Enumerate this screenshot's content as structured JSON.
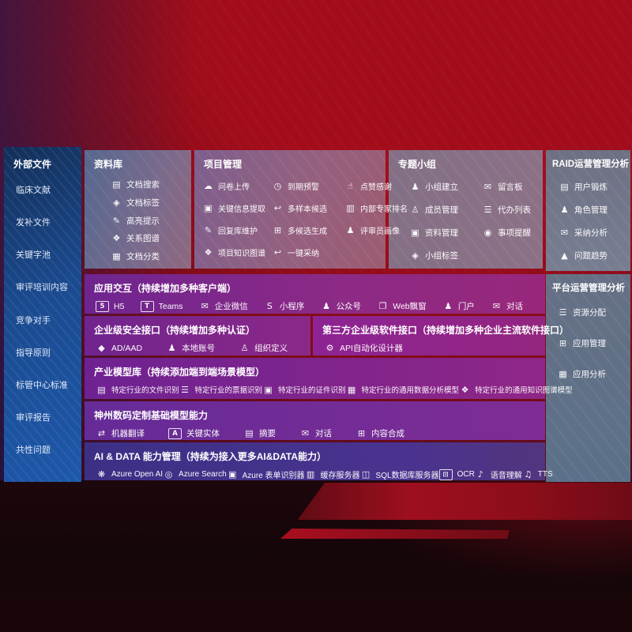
{
  "colors": {
    "bg-red": "#a30d1b",
    "sidebar-blue": "#1b4a8e",
    "panel-purple": "#8c2a86",
    "panel-indigo": "#3c3085",
    "panel-gray-blue": "#5b7189"
  },
  "icon_glyphs": {
    "document-search": "▤",
    "document-tag": "◈",
    "highlight-pen": "✎",
    "relation-graph": "❖",
    "document-category": "▦",
    "upload-cloud": "☁",
    "alarm-clock": "◷",
    "thumbs-up": "☝",
    "info-extract": "▣",
    "multi-sample-reply": "↩",
    "expert-ranking": "▥",
    "reply-maintain-pen": "✎",
    "multi-generate-grid": "⊞",
    "reviewer-person": "♟",
    "knowledge-graph": "❖",
    "one-click-adopt": "↩",
    "group-people": "♟",
    "bbs-board": "✉",
    "member-person": "♙",
    "todo-clipboard": "☰",
    "data-box": "▣",
    "reminder-bell": "◉",
    "group-tag": "◈",
    "user-card": "▤",
    "role-people": "♟",
    "adoption-chat": "✉",
    "trend-chart": "▲",
    "resource-list": "☰",
    "app-grid": "⊞",
    "app-chart": "▦",
    "html5": "5",
    "teams": "T",
    "wecom-chat": "✉",
    "miniprogram": "S",
    "official-account": "♟",
    "web-window": "❐",
    "portal-person": "♟",
    "dialog-people": "✉",
    "ad-diamond": "◆",
    "local-account-person": "♟",
    "org-person": "♙",
    "api-gear": "⚙",
    "file-recognize": "▤",
    "receipt-recognize": "☰",
    "idcard-recognize": "▣",
    "data-model-image": "▦",
    "knowledge-model-graph": "❖",
    "translate": "⇄",
    "key-entity-a": "A",
    "summary-doc": "▤",
    "chat-bubble": "✉",
    "content-grid": "⊞",
    "azure-openai": "❋",
    "azure-search": "◎",
    "form-recognizer": "▣",
    "cache-server": "▥",
    "sql-database": "◫",
    "ocr-frame": "⊡",
    "speech-understand": "♪",
    "tts-phone": "♫"
  },
  "sidebar": {
    "title": "外部文件",
    "items": [
      "临床文献",
      "发补文件",
      "关键字池",
      "审评培训内容",
      "竞争对手",
      "指导原则",
      "标管中心标准",
      "审评报告",
      "共性问题"
    ]
  },
  "panels": {
    "library": {
      "title": "资料库",
      "items": [
        {
          "label": "文档搜索",
          "icon": "document-search"
        },
        {
          "label": "文档标签",
          "icon": "document-tag"
        },
        {
          "label": "高亮提示",
          "icon": "highlight-pen"
        },
        {
          "label": "关系图谱",
          "icon": "relation-graph"
        },
        {
          "label": "文档分类",
          "icon": "document-category"
        }
      ]
    },
    "project": {
      "title": "项目管理",
      "items": [
        {
          "label": "问卷上传",
          "icon": "upload-cloud"
        },
        {
          "label": "到期预警",
          "icon": "alarm-clock"
        },
        {
          "label": "点赞感谢",
          "icon": "thumbs-up"
        },
        {
          "label": "关键信息提取",
          "icon": "info-extract"
        },
        {
          "label": "多样本候选",
          "icon": "multi-sample-reply"
        },
        {
          "label": "内部专家排名",
          "icon": "expert-ranking"
        },
        {
          "label": "回复库维护",
          "icon": "reply-maintain-pen"
        },
        {
          "label": "多候选生成",
          "icon": "multi-generate-grid"
        },
        {
          "label": "评审员画像",
          "icon": "reviewer-person"
        },
        {
          "label": "项目知识图谱",
          "icon": "knowledge-graph"
        },
        {
          "label": "一键采纳",
          "icon": "one-click-adopt"
        }
      ]
    },
    "topic_group": {
      "title": "专题小组",
      "items": [
        {
          "label": "小组建立",
          "icon": "group-people"
        },
        {
          "label": "留言板",
          "icon": "bbs-board"
        },
        {
          "label": "成员管理",
          "icon": "member-person"
        },
        {
          "label": "代办列表",
          "icon": "todo-clipboard"
        },
        {
          "label": "资料管理",
          "icon": "data-box"
        },
        {
          "label": "事项提醒",
          "icon": "reminder-bell"
        },
        {
          "label": "小组标签",
          "icon": "group-tag"
        }
      ]
    },
    "raid": {
      "title": "RAID运营管理分析",
      "items": [
        {
          "label": "用户锻炼",
          "icon": "user-card"
        },
        {
          "label": "角色管理",
          "icon": "role-people"
        },
        {
          "label": "采纳分析",
          "icon": "adoption-chat"
        },
        {
          "label": "问题趋势",
          "icon": "trend-chart"
        }
      ]
    },
    "platform": {
      "title": "平台运营管理分析",
      "items": [
        {
          "label": "资源分配",
          "icon": "resource-list"
        },
        {
          "label": "应用管理",
          "icon": "app-grid"
        },
        {
          "label": "应用分析",
          "icon": "app-chart"
        }
      ]
    },
    "interaction": {
      "title": "应用交互（持续增加多种客户端）",
      "items": [
        {
          "label": "H5",
          "icon": "html5",
          "badge": true
        },
        {
          "label": "Teams",
          "icon": "teams",
          "badge": true
        },
        {
          "label": "企业微信",
          "icon": "wecom-chat"
        },
        {
          "label": "小程序",
          "icon": "miniprogram"
        },
        {
          "label": "公众号",
          "icon": "official-account"
        },
        {
          "label": "Web飘窗",
          "icon": "web-window"
        },
        {
          "label": "门户",
          "icon": "portal-person"
        },
        {
          "label": "对话",
          "icon": "dialog-people"
        }
      ]
    },
    "security": {
      "title": "企业级安全接口（持续增加多种认证）",
      "items": [
        {
          "label": "AD/AAD",
          "icon": "ad-diamond"
        },
        {
          "label": "本地账号",
          "icon": "local-account-person"
        },
        {
          "label": "组织定义",
          "icon": "org-person"
        }
      ]
    },
    "third_party": {
      "title": "第三方企业级软件接口（持续增加多种企业主流软件接口）",
      "items": [
        {
          "label": "API自动化设计器",
          "icon": "api-gear"
        }
      ]
    },
    "industry_models": {
      "title": "产业模型库（持续添加端到端场景模型）",
      "items": [
        {
          "label": "特定行业的文件识别",
          "icon": "file-recognize"
        },
        {
          "label": "特定行业的票据识别",
          "icon": "receipt-recognize"
        },
        {
          "label": "特定行业的证件识别",
          "icon": "idcard-recognize"
        },
        {
          "label": "特定行业的通用数据分析模型",
          "icon": "data-model-image"
        },
        {
          "label": "特定行业的通用知识图谱模型",
          "icon": "knowledge-model-graph"
        }
      ]
    },
    "digital_china": {
      "title": "神州数码定制基础模型能力",
      "items": [
        {
          "label": "机器翻译",
          "icon": "translate"
        },
        {
          "label": "关键实体",
          "icon": "key-entity-a",
          "badge": true
        },
        {
          "label": "摘要",
          "icon": "summary-doc"
        },
        {
          "label": "对话",
          "icon": "chat-bubble"
        },
        {
          "label": "内容合成",
          "icon": "content-grid"
        }
      ]
    },
    "ai_data": {
      "title": "AI & DATA 能力管理（持续为接入更多AI&DATA能力）",
      "items": [
        {
          "label": "Azure Open AI",
          "icon": "azure-openai"
        },
        {
          "label": "Azure Search",
          "icon": "azure-search"
        },
        {
          "label": "Azure 表单识别器",
          "icon": "form-recognizer"
        },
        {
          "label": "缓存服务器",
          "icon": "cache-server"
        },
        {
          "label": "SQL数据库服务器",
          "icon": "sql-database"
        },
        {
          "label": "OCR",
          "icon": "ocr-frame",
          "badge": true
        },
        {
          "label": "语音理解",
          "icon": "speech-understand"
        },
        {
          "label": "TTS",
          "icon": "tts-phone"
        }
      ]
    }
  }
}
